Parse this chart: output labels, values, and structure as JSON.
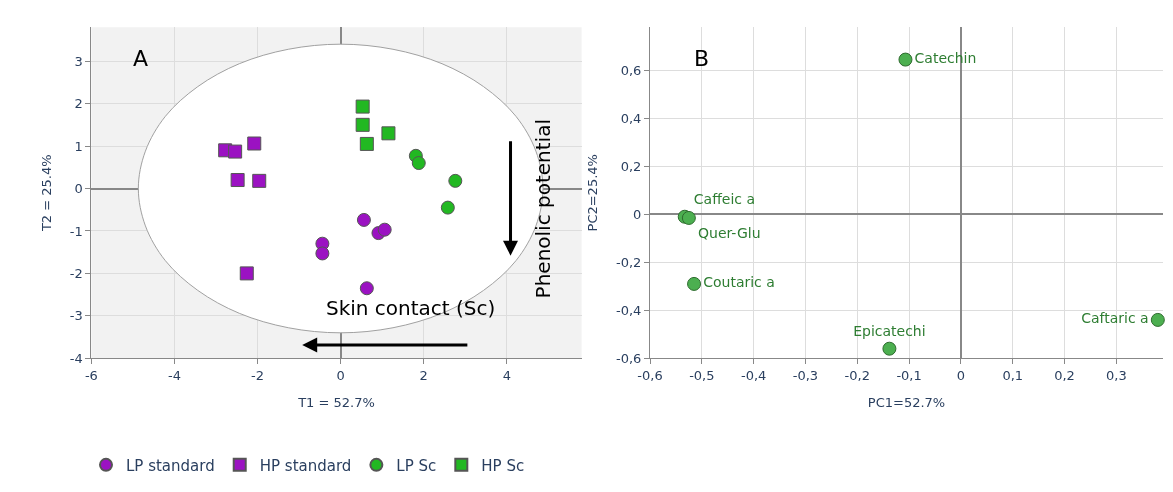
{
  "chart_data": [
    {
      "type": "scatter",
      "title": "A",
      "xlabel": "T1 = 52.7%",
      "ylabel": "T2 = 25.4%",
      "xlim": [
        -6,
        5.8
      ],
      "ylim": [
        -4,
        3.8
      ],
      "xticks": [
        -6,
        -4,
        -2,
        0,
        2,
        4
      ],
      "yticks": [
        -4,
        -3,
        -2,
        -1,
        0,
        1,
        2,
        3
      ],
      "grid": true,
      "legend": "bottom",
      "annotations": [
        "Skin contact (Sc)",
        "Phenolic potential"
      ],
      "series": [
        {
          "type": "area",
          "color": "#a0a0a0",
          "marker": "none",
          "x": [
            4.87,
            4.7,
            4.22,
            3.44,
            2.44,
            1.26,
            0,
            -1.26,
            -2.44,
            -3.44,
            -4.22,
            -4.7,
            -4.87,
            -4.7,
            -4.22,
            -3.44,
            -2.44,
            -1.26,
            0,
            1.26,
            2.44,
            3.44,
            4.22,
            4.7,
            4.87
          ],
          "values": [
            0,
            0.88,
            1.7,
            2.4,
            2.94,
            3.28,
            3.4,
            3.28,
            2.94,
            2.4,
            1.7,
            0.88,
            0,
            -0.88,
            -1.7,
            -2.4,
            -2.94,
            -3.28,
            -3.4,
            -3.28,
            -2.94,
            -2.4,
            -1.7,
            -0.88,
            0
          ]
        },
        {
          "name": "LP standard",
          "color": "#9b12c2",
          "marker": "circle",
          "x": [
            0.56,
            0.91,
            1.06,
            -0.44,
            -0.44,
            0.63
          ],
          "values": [
            -0.74,
            -1.05,
            -0.97,
            -1.3,
            -1.53,
            -2.35
          ]
        },
        {
          "name": "HP standard",
          "color": "#9b12c2",
          "marker": "square",
          "x": [
            -2.78,
            -2.54,
            -2.08,
            -2.48,
            -1.96,
            -2.26
          ],
          "values": [
            0.9,
            0.87,
            1.06,
            0.2,
            0.18,
            -2.0
          ]
        },
        {
          "name": "LP Sc",
          "color": "#22b822",
          "marker": "circle",
          "x": [
            1.81,
            1.88,
            2.76,
            2.58
          ],
          "values": [
            0.77,
            0.6,
            0.18,
            -0.45
          ]
        },
        {
          "name": "HP Sc",
          "color": "#22b822",
          "marker": "square",
          "x": [
            0.53,
            0.53,
            0.63,
            1.15
          ],
          "values": [
            1.93,
            1.5,
            1.05,
            1.3
          ]
        }
      ]
    },
    {
      "type": "scatter",
      "title": "B",
      "xlabel": "PC1=52.7%",
      "ylabel": "PC2=25.4%",
      "xlim": [
        -0.6,
        0.39
      ],
      "ylim": [
        -0.6,
        0.78
      ],
      "grid": true,
      "legend": false,
      "marker": "circle",
      "xticks": [
        {
          "value": -0.6,
          "label": "-0,6"
        },
        {
          "value": -0.5,
          "label": "-0,5"
        },
        {
          "value": -0.4,
          "label": "-0,4"
        },
        {
          "value": -0.3,
          "label": "-0,3"
        },
        {
          "value": -0.2,
          "label": "-0,2"
        },
        {
          "value": -0.1,
          "label": "-0,1"
        },
        0,
        {
          "value": 0.1,
          "label": "0,1"
        },
        {
          "value": 0.2,
          "label": "0,2"
        },
        {
          "value": 0.3,
          "label": "0,3"
        }
      ],
      "yticks": [
        {
          "value": -0.6,
          "label": "-0,6"
        },
        {
          "value": -0.4,
          "label": "-0,4"
        },
        {
          "value": -0.2,
          "label": "-0,2"
        },
        0,
        {
          "value": 0.2,
          "label": "0,2"
        },
        {
          "value": 0.4,
          "label": "0,4"
        },
        {
          "value": 0.6,
          "label": "0,6"
        }
      ],
      "series": [
        {
          "name": "Catechin",
          "color": "#4caf50",
          "x": [
            -0.107
          ],
          "values": [
            0.645
          ]
        },
        {
          "name": "Caffeic a",
          "color": "#4caf50",
          "x": [
            -0.533
          ],
          "values": [
            -0.01
          ]
        },
        {
          "name": "Quer-Glu",
          "color": "#4caf50",
          "x": [
            -0.525
          ],
          "values": [
            -0.015
          ]
        },
        {
          "name": "Coutaric a",
          "color": "#4caf50",
          "x": [
            -0.515
          ],
          "values": [
            -0.29
          ]
        },
        {
          "name": "Epicatechi",
          "color": "#4caf50",
          "x": [
            -0.138
          ],
          "values": [
            -0.56
          ]
        },
        {
          "name": "Caftaric a",
          "color": "#4caf50",
          "x": [
            0.38
          ],
          "values": [
            -0.44
          ]
        }
      ]
    }
  ]
}
